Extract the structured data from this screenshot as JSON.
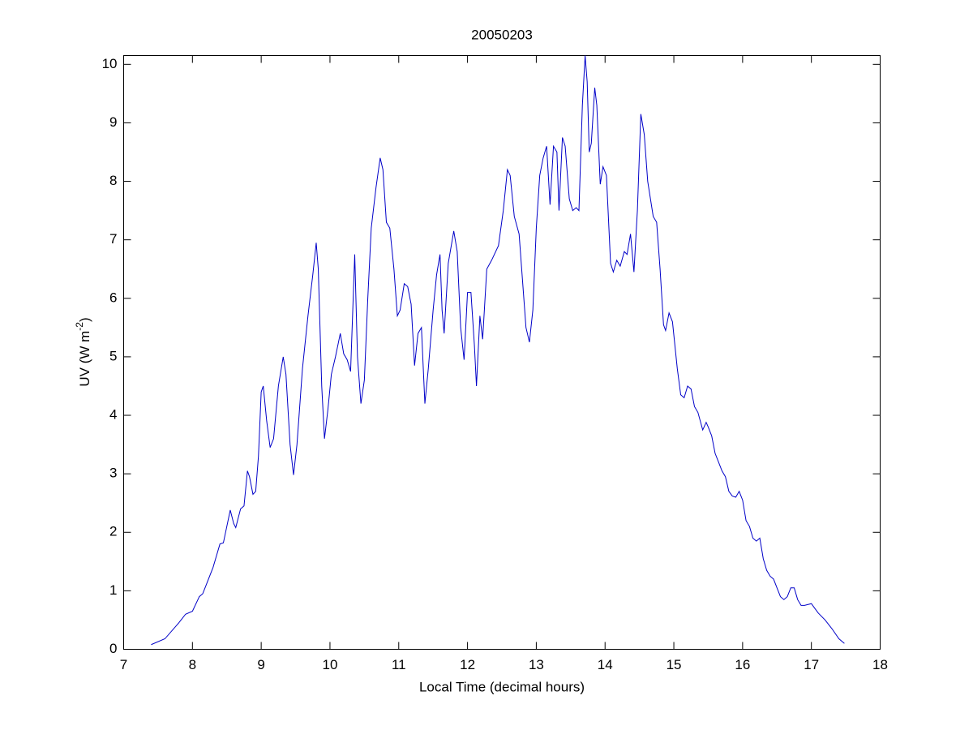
{
  "chart_data": {
    "type": "line",
    "title": "20050203",
    "xlabel": "Local Time (decimal hours)",
    "ylabel": {
      "text": "UV (W m",
      "superscript": "-2",
      "suffix": ")"
    },
    "color": "#0000c8",
    "xlim": [
      7,
      18
    ],
    "xticks": [
      7,
      8,
      9,
      10,
      11,
      12,
      13,
      14,
      15,
      16,
      17,
      18
    ],
    "ylim": [
      0,
      10.15
    ],
    "yticks": [
      0,
      1,
      2,
      3,
      4,
      5,
      6,
      7,
      8,
      9,
      10
    ],
    "x": [
      7.4,
      7.6,
      7.8,
      7.9,
      8.0,
      8.1,
      8.15,
      8.2,
      8.3,
      8.35,
      8.4,
      8.45,
      8.5,
      8.55,
      8.6,
      8.63,
      8.7,
      8.75,
      8.8,
      8.83,
      8.88,
      8.92,
      8.96,
      9.0,
      9.03,
      9.08,
      9.13,
      9.18,
      9.25,
      9.32,
      9.36,
      9.42,
      9.47,
      9.52,
      9.6,
      9.68,
      9.75,
      9.8,
      9.83,
      9.88,
      9.92,
      9.97,
      10.02,
      10.08,
      10.15,
      10.2,
      10.25,
      10.3,
      10.36,
      10.4,
      10.45,
      10.5,
      10.55,
      10.6,
      10.67,
      10.73,
      10.77,
      10.82,
      10.87,
      10.93,
      10.98,
      11.02,
      11.08,
      11.13,
      11.18,
      11.23,
      11.28,
      11.33,
      11.38,
      11.43,
      11.5,
      11.55,
      11.6,
      11.63,
      11.66,
      11.72,
      11.8,
      11.85,
      11.9,
      11.95,
      12.0,
      12.05,
      12.1,
      12.13,
      12.18,
      12.22,
      12.28,
      12.35,
      12.45,
      12.52,
      12.58,
      12.62,
      12.68,
      12.75,
      12.8,
      12.85,
      12.9,
      12.95,
      13.0,
      13.05,
      13.1,
      13.15,
      13.2,
      13.25,
      13.3,
      13.33,
      13.38,
      13.42,
      13.48,
      13.53,
      13.58,
      13.62,
      13.67,
      13.71,
      13.74,
      13.77,
      13.8,
      13.85,
      13.88,
      13.93,
      13.97,
      14.02,
      14.08,
      14.12,
      14.17,
      14.22,
      14.28,
      14.32,
      14.37,
      14.42,
      14.47,
      14.52,
      14.57,
      14.62,
      14.7,
      14.75,
      14.8,
      14.85,
      14.88,
      14.93,
      14.98,
      15.05,
      15.1,
      15.15,
      15.2,
      15.25,
      15.3,
      15.35,
      15.42,
      15.47,
      15.5,
      15.55,
      15.6,
      15.65,
      15.7,
      15.75,
      15.8,
      15.85,
      15.9,
      15.95,
      16.0,
      16.05,
      16.1,
      16.15,
      16.2,
      16.25,
      16.3,
      16.35,
      16.4,
      16.45,
      16.5,
      16.55,
      16.6,
      16.65,
      16.7,
      16.75,
      16.8,
      16.85,
      16.9,
      17.0,
      17.05,
      17.1,
      17.2,
      17.3,
      17.4,
      17.48
    ],
    "values": [
      0.08,
      0.18,
      0.45,
      0.6,
      0.65,
      0.9,
      0.95,
      1.1,
      1.4,
      1.6,
      1.8,
      1.82,
      2.1,
      2.38,
      2.15,
      2.08,
      2.4,
      2.45,
      3.05,
      2.95,
      2.65,
      2.7,
      3.3,
      4.4,
      4.5,
      3.9,
      3.45,
      3.6,
      4.5,
      5.0,
      4.7,
      3.5,
      2.98,
      3.5,
      4.8,
      5.7,
      6.4,
      6.95,
      6.5,
      4.5,
      3.6,
      4.1,
      4.7,
      5.0,
      5.4,
      5.05,
      4.95,
      4.75,
      6.75,
      5.0,
      4.2,
      4.6,
      6.0,
      7.2,
      7.9,
      8.4,
      8.2,
      7.3,
      7.2,
      6.5,
      5.7,
      5.8,
      6.25,
      6.2,
      5.9,
      4.85,
      5.4,
      5.5,
      4.2,
      4.8,
      5.8,
      6.4,
      6.75,
      5.8,
      5.4,
      6.6,
      7.15,
      6.8,
      5.5,
      4.95,
      6.1,
      6.1,
      5.2,
      4.5,
      5.7,
      5.3,
      6.5,
      6.65,
      6.9,
      7.5,
      8.2,
      8.1,
      7.4,
      7.1,
      6.3,
      5.5,
      5.25,
      5.8,
      7.2,
      8.1,
      8.4,
      8.6,
      7.6,
      8.6,
      8.5,
      7.5,
      8.75,
      8.6,
      7.7,
      7.5,
      7.55,
      7.5,
      9.3,
      10.15,
      9.7,
      8.5,
      8.65,
      9.6,
      9.3,
      7.95,
      8.25,
      8.1,
      6.6,
      6.45,
      6.65,
      6.55,
      6.8,
      6.75,
      7.1,
      6.45,
      7.5,
      9.15,
      8.8,
      8.0,
      7.4,
      7.3,
      6.5,
      5.55,
      5.45,
      5.75,
      5.6,
      4.8,
      4.35,
      4.3,
      4.5,
      4.45,
      4.15,
      4.05,
      3.75,
      3.88,
      3.8,
      3.65,
      3.35,
      3.2,
      3.05,
      2.95,
      2.7,
      2.62,
      2.6,
      2.7,
      2.55,
      2.2,
      2.1,
      1.9,
      1.85,
      1.9,
      1.55,
      1.35,
      1.25,
      1.2,
      1.05,
      0.9,
      0.85,
      0.9,
      1.05,
      1.05,
      0.85,
      0.75,
      0.75,
      0.78,
      0.7,
      0.62,
      0.5,
      0.35,
      0.18,
      0.1
    ]
  }
}
